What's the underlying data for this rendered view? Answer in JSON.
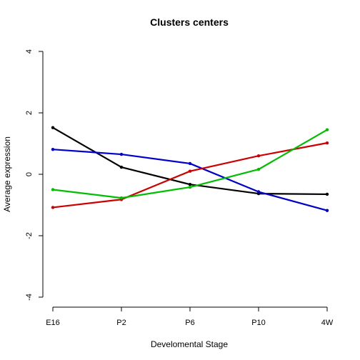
{
  "chart_data": {
    "type": "line",
    "title": "Clusters centers",
    "xlabel": "Develomental Stage",
    "ylabel": "Average expression",
    "categories": [
      "E16",
      "P2",
      "P6",
      "P10",
      "4W"
    ],
    "ylim": [
      -4,
      4
    ],
    "yticks": [
      -4,
      -2,
      0,
      2,
      4
    ],
    "grid": false,
    "legend": "none",
    "series": [
      {
        "color": "#000000",
        "values": [
          1.52,
          0.23,
          -0.33,
          -0.63,
          -0.65
        ]
      },
      {
        "color": "#0000CD",
        "values": [
          0.81,
          0.65,
          0.35,
          -0.57,
          -1.18
        ]
      },
      {
        "color": "#CD0000",
        "values": [
          -1.08,
          -0.82,
          0.1,
          0.6,
          1.02
        ]
      },
      {
        "color": "#00BE00",
        "values": [
          -0.5,
          -0.77,
          -0.42,
          0.16,
          1.45
        ]
      }
    ]
  }
}
